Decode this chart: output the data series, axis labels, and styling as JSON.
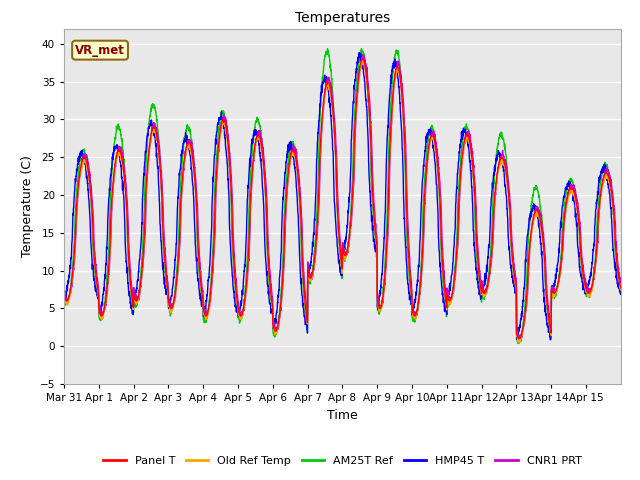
{
  "title": "Temperatures",
  "xlabel": "Time",
  "ylabel": "Temperature (C)",
  "annotation": "VR_met",
  "ylim": [
    -5,
    42
  ],
  "yticks": [
    -5,
    0,
    5,
    10,
    15,
    20,
    25,
    30,
    35,
    40
  ],
  "plot_bg_color": "#e8e8e8",
  "fig_bg_color": "#ffffff",
  "grid_color": "#ffffff",
  "series": [
    {
      "label": "Panel T",
      "color": "#ff0000",
      "lw": 1.0
    },
    {
      "label": "Old Ref Temp",
      "color": "#ffa500",
      "lw": 1.0
    },
    {
      "label": "AM25T Ref",
      "color": "#00cc00",
      "lw": 1.0
    },
    {
      "label": "HMP45 T",
      "color": "#0000ff",
      "lw": 1.0
    },
    {
      "label": "CNR1 PRT",
      "color": "#cc00cc",
      "lw": 1.0
    }
  ],
  "n_days": 16,
  "samples_per_day": 144,
  "date_labels": [
    "Mar 31",
    "Apr 1",
    "Apr 2",
    "Apr 3",
    "Apr 4",
    "Apr 5",
    "Apr 6",
    "Apr 7",
    "Apr 8",
    "Apr 9",
    "Apr 10",
    "Apr 11",
    "Apr 12",
    "Apr 13",
    "Apr 14",
    "Apr 15"
  ],
  "day_mins": [
    6,
    4,
    6,
    5,
    4,
    4,
    2,
    9,
    12,
    5,
    4,
    6,
    7,
    1,
    7,
    7
  ],
  "day_maxs": [
    25,
    26,
    29,
    27,
    30,
    28,
    26,
    35,
    38,
    37,
    28,
    28,
    25,
    18,
    21,
    23
  ],
  "am25t_extra": [
    1,
    3,
    3,
    2,
    1,
    2,
    1,
    4,
    1,
    2,
    1,
    1,
    3,
    3,
    1,
    1
  ],
  "hmp45_lead": 0.08,
  "peak_time": 0.58
}
